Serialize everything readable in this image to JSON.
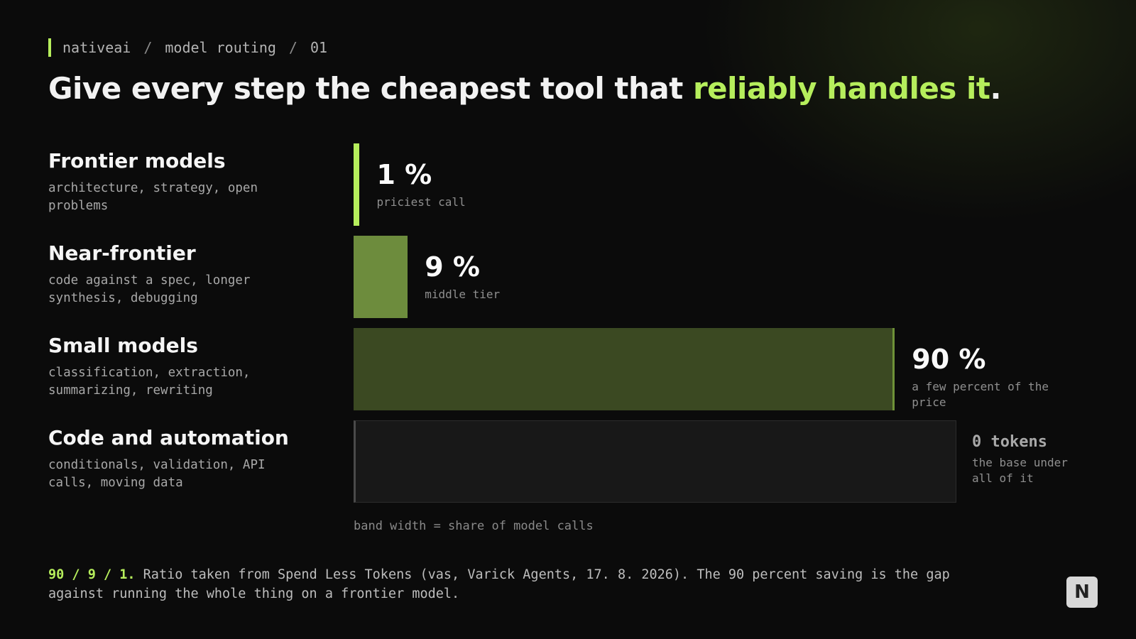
{
  "breadcrumb": {
    "items": [
      "nativeai",
      "model routing",
      "01"
    ],
    "separator": "/"
  },
  "chart_data": {
    "type": "bar",
    "title_parts": [
      "Give every step the cheapest tool that ",
      "reliably handles it",
      "."
    ],
    "categories": [
      "Frontier models",
      "Near-frontier",
      "Small models"
    ],
    "descriptions": [
      "architecture, strategy, open problems",
      "code against a spec, longer synthesis, debugging",
      "classification, extraction, summarizing, rewriting"
    ],
    "values": [
      1,
      9,
      90
    ],
    "value_labels": [
      "1 %",
      "9 %",
      "90 %"
    ],
    "sublabels": [
      "priciest call",
      "middle tier",
      "a few percent of the price"
    ],
    "colors": [
      "#b6ee5c",
      "#6d8c3d",
      "#3b4922"
    ],
    "xlim": [
      0,
      100
    ],
    "base_tier": {
      "category": "Code and automation",
      "description": "conditionals, validation, API calls, moving data",
      "label": "0 tokens",
      "sublabel": "the base under all of it"
    },
    "note": "band width = share of model calls"
  },
  "footer": {
    "lead": "90 / 9 / 1.",
    "text": " Ratio taken from Spend Less Tokens (vas, Varick Agents, 17. 8. 2026). The 90 percent saving is the gap against running the whole thing on a frontier model."
  },
  "logo": "N"
}
